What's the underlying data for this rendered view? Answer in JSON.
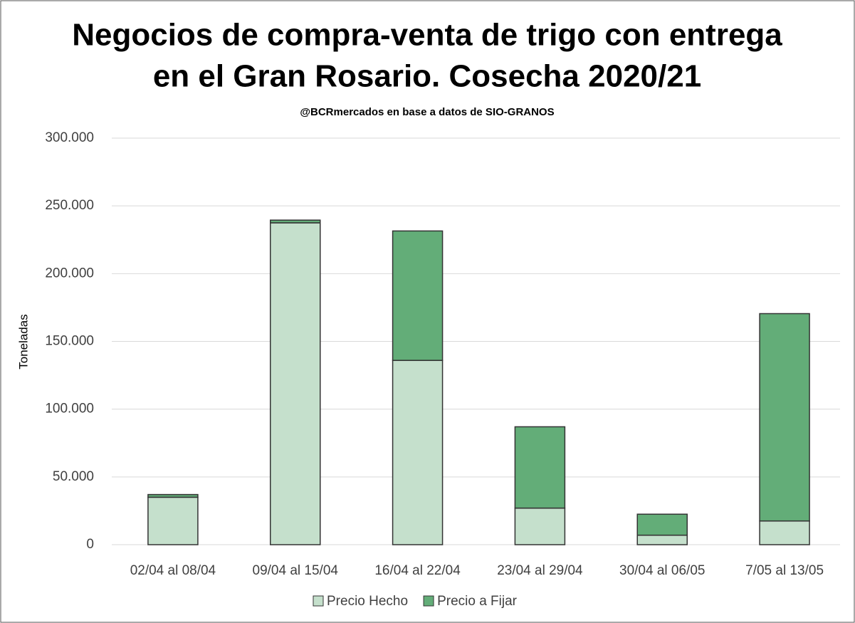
{
  "chart_data": {
    "type": "stacked_bar",
    "title": [
      "Negocios de compra-venta de trigo con entrega",
      "en el Gran Rosario. Cosecha 2020/21"
    ],
    "subtitle": "@BCRmercados en base a datos de SIO-GRANOS",
    "y_label": "Toneladas",
    "categories": [
      "02/04 al 08/04",
      "09/04 al 15/04",
      "16/04 al 22/04",
      "23/04 al 29/04",
      "30/04 al 06/05",
      "7/05 al 13/05"
    ],
    "series": [
      {
        "name": "Precio Hecho",
        "color": "#c5e0cc",
        "values": [
          35000,
          237500,
          136000,
          27000,
          7000,
          17500
        ]
      },
      {
        "name": "Precio a Fijar",
        "color": "#63ad78",
        "values": [
          2000,
          2000,
          95500,
          60000,
          15500,
          153000
        ]
      }
    ],
    "ylim": [
      0,
      300000
    ],
    "yticks": [
      0,
      {
        "value": 50000,
        "label": "50.000"
      },
      {
        "value": 100000,
        "label": "100.000"
      },
      {
        "value": 150000,
        "label": "150.000"
      },
      {
        "value": 200000,
        "label": "200.000"
      },
      {
        "value": 250000,
        "label": "250.000"
      },
      {
        "value": 300000,
        "label": "300.000"
      }
    ],
    "grid": true,
    "legend": "bottom"
  }
}
